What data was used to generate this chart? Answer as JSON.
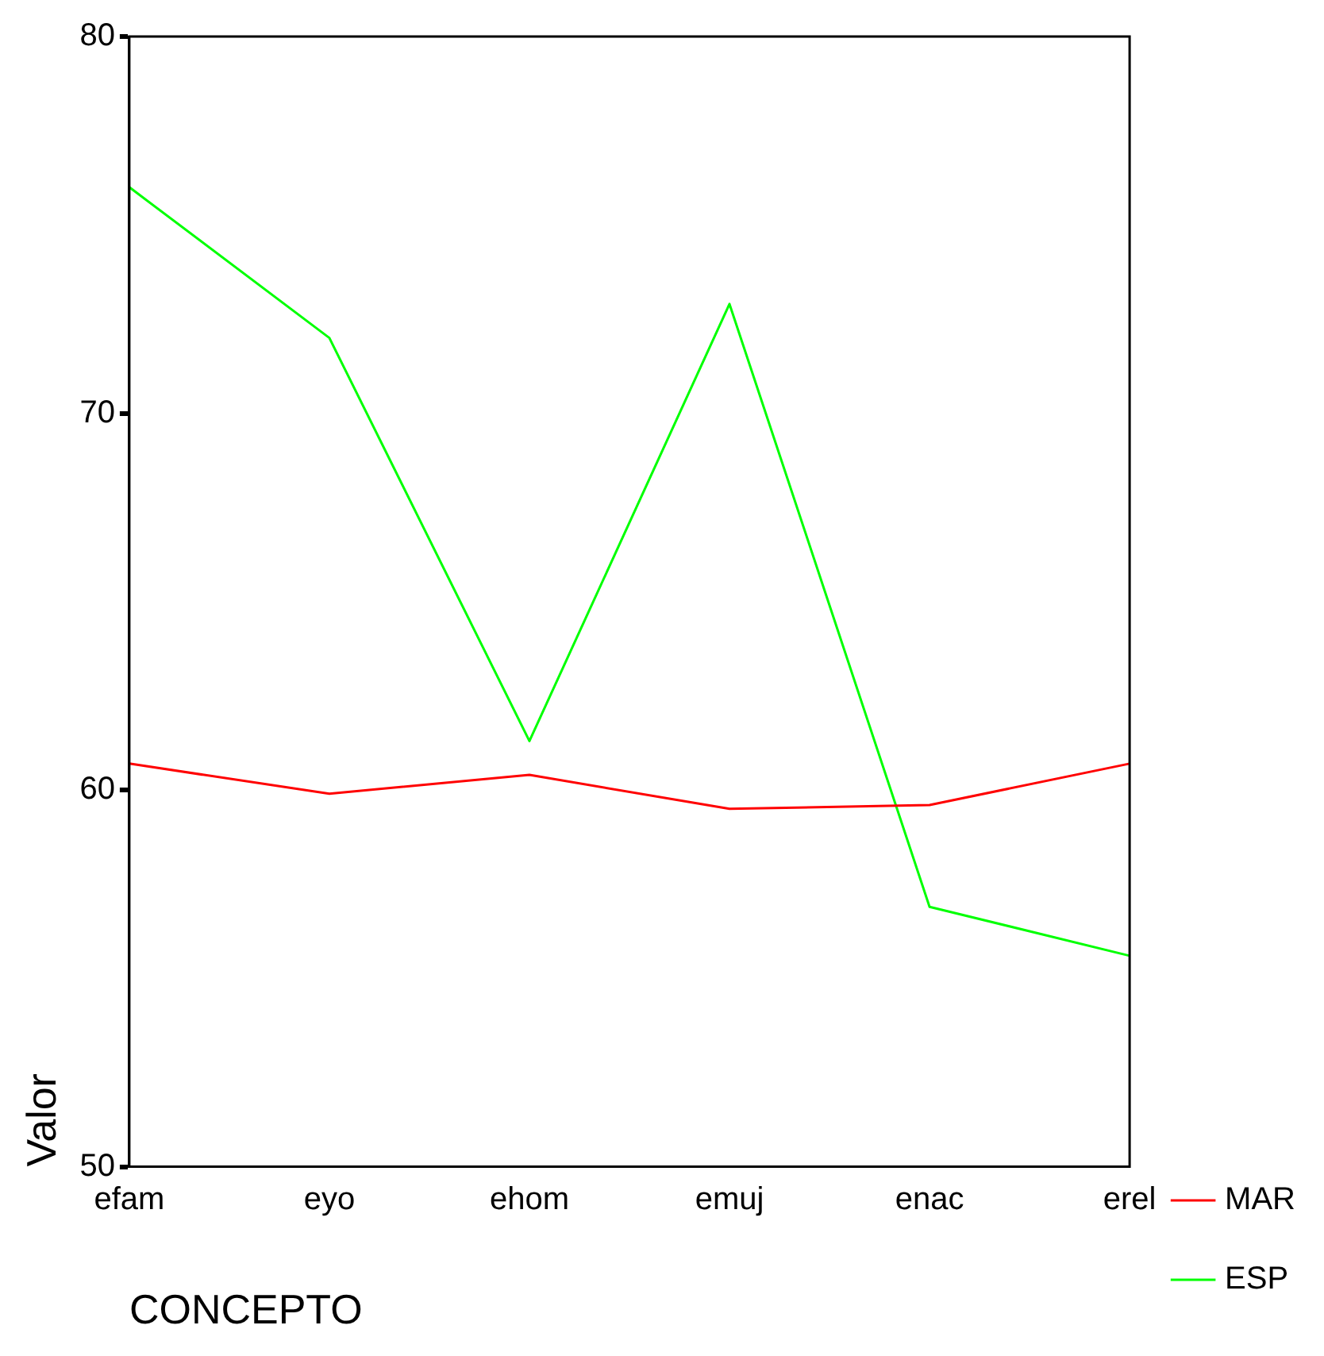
{
  "chart_data": {
    "type": "line",
    "xlabel": "CONCEPTO",
    "ylabel": "Valor",
    "categories": [
      "efam",
      "eyo",
      "ehom",
      "emuj",
      "enac",
      "erel"
    ],
    "series": [
      {
        "name": "MAR",
        "color": "#ff0000",
        "values": [
          60.7,
          59.9,
          60.4,
          59.5,
          59.6,
          60.7
        ]
      },
      {
        "name": "ESP",
        "color": "#00ff00",
        "values": [
          76.0,
          72.0,
          61.3,
          72.9,
          56.9,
          55.6
        ]
      }
    ],
    "ylim": [
      50,
      80
    ],
    "yticks": [
      50,
      60,
      70,
      80
    ],
    "grid": false,
    "legend": "bottom right",
    "marker": "none",
    "line_style": "solid"
  }
}
